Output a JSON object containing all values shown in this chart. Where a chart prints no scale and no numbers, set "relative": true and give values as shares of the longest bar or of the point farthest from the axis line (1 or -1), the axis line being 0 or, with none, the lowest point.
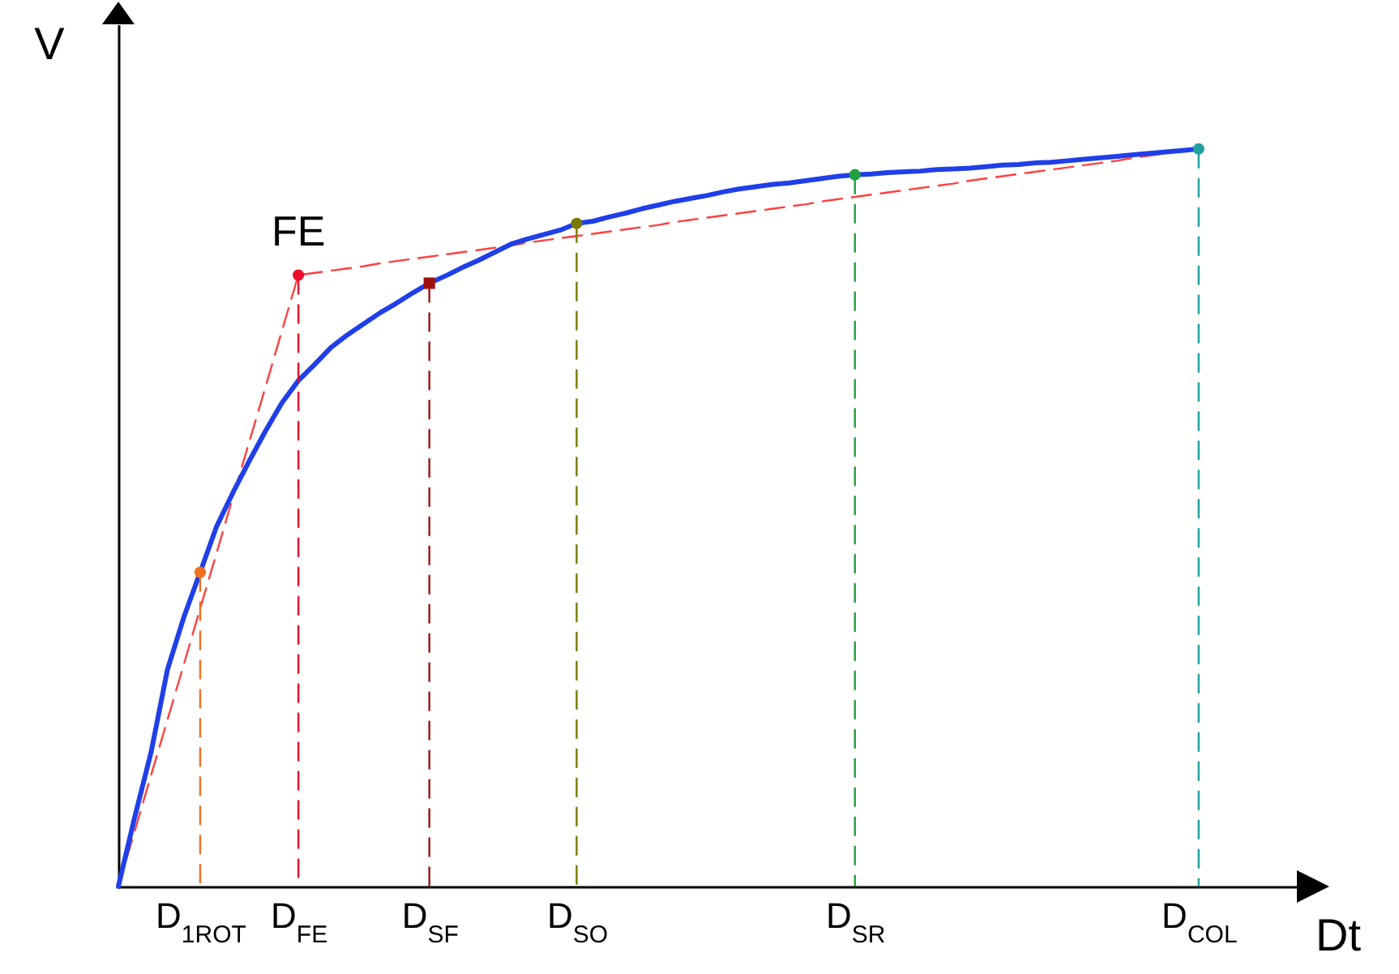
{
  "chart_data": {
    "type": "line",
    "relative": true,
    "xlabel": "Dt",
    "ylabel": "V",
    "categories": [
      null,
      null,
      null,
      null,
      null,
      "D$_{1ROT}$",
      null,
      null,
      null,
      null,
      null,
      "D$_{FE}$",
      null,
      null,
      null,
      null,
      null,
      null,
      null,
      "D$_{SF}$",
      null,
      null,
      null,
      null,
      null,
      null,
      null,
      null,
      "D$_{SO}$",
      null,
      null,
      null,
      null,
      null,
      null,
      null,
      null,
      null,
      null,
      null,
      null,
      null,
      null,
      null,
      null,
      "D$_{SR}$",
      null,
      null,
      null,
      null,
      null,
      null,
      null,
      null,
      null,
      null,
      null,
      null,
      null,
      null,
      null,
      null,
      null,
      null,
      null,
      null,
      "D$_{COL}$",
      null,
      null,
      null,
      null,
      null,
      null
    ],
    "series": [
      {
        "type": "lollipop",
        "marker": "circle",
        "line_style": "dashed",
        "values": [
          null,
          null,
          null,
          null,
          null,
          0.426,
          null,
          null,
          null,
          null,
          null,
          0.829,
          null,
          null,
          null,
          null,
          null,
          null,
          null,
          null,
          null,
          null,
          null,
          null,
          null,
          null,
          null,
          null,
          0.899,
          null,
          null,
          null,
          null,
          null,
          null,
          null,
          null,
          null,
          null,
          null,
          null,
          null,
          null,
          null,
          null,
          0.965,
          null,
          null,
          null,
          null,
          null,
          null,
          null,
          null,
          null,
          null,
          null,
          null,
          null,
          null,
          null,
          null,
          null,
          null,
          null,
          null,
          1,
          null,
          null,
          null,
          null,
          null,
          null
        ],
        "colors": [
          null,
          null,
          null,
          null,
          null,
          "#f07020",
          null,
          null,
          null,
          null,
          null,
          "#e8102a",
          null,
          null,
          null,
          null,
          null,
          null,
          null,
          null,
          null,
          null,
          null,
          null,
          null,
          null,
          null,
          null,
          "#7a7a00",
          null,
          null,
          null,
          null,
          null,
          null,
          null,
          null,
          null,
          null,
          null,
          null,
          null,
          null,
          null,
          null,
          "#20a040",
          null,
          null,
          null,
          null,
          null,
          null,
          null,
          null,
          null,
          null,
          null,
          null,
          null,
          null,
          null,
          null,
          null,
          null,
          null,
          null,
          "#20a0a0",
          null,
          null,
          null,
          null,
          null,
          null
        ]
      },
      {
        "color": "#ff4040",
        "line_style": "dashed",
        "marker": "none",
        "values": [
          0,
          0.075,
          0.151,
          0.226,
          0.301,
          0.377,
          0.452,
          0.528,
          0.603,
          0.678,
          0.754,
          0.829,
          0.832,
          0.835,
          0.838,
          0.841,
          0.845,
          0.848,
          0.851,
          0.854,
          0.857,
          0.86,
          0.863,
          0.866,
          0.869,
          0.873,
          0.876,
          0.879,
          0.882,
          0.885,
          0.888,
          0.891,
          0.894,
          0.897,
          0.901,
          0.904,
          0.907,
          0.91,
          0.913,
          0.916,
          0.919,
          0.922,
          0.925,
          0.929,
          0.932,
          0.935,
          0.938,
          0.941,
          0.944,
          0.947,
          0.95,
          0.953,
          0.957,
          0.96,
          0.963,
          0.966,
          0.969,
          0.972,
          0.975,
          0.978,
          0.981,
          0.984,
          0.988,
          0.991,
          0.994,
          0.997,
          1,
          null,
          null,
          null,
          null,
          null,
          null
        ]
      },
      {
        "color": "#1f3fe8",
        "line_style": "solid",
        "marker": "none",
        "values": [
          0,
          0.094,
          0.182,
          0.294,
          0.365,
          0.426,
          0.488,
          0.534,
          0.577,
          0.618,
          0.656,
          0.686,
          0.708,
          0.731,
          0.748,
          0.763,
          0.778,
          0.791,
          0.805,
          0.818,
          0.828,
          0.839,
          0.849,
          0.86,
          0.871,
          0.878,
          0.884,
          0.89,
          0.899,
          0.902,
          0.908,
          0.913,
          0.919,
          0.924,
          0.929,
          0.933,
          0.937,
          0.942,
          0.946,
          0.949,
          0.952,
          0.954,
          0.957,
          0.96,
          0.963,
          0.965,
          0.966,
          0.968,
          0.969,
          0.97,
          0.972,
          0.973,
          0.974,
          0.976,
          0.978,
          0.979,
          0.981,
          0.982,
          0.984,
          0.986,
          0.988,
          0.99,
          0.992,
          0.994,
          0.996,
          0.998,
          1,
          null,
          null,
          null,
          null,
          null,
          null
        ]
      },
      {
        "type": "lollipop",
        "marker": "square",
        "line_style": "dashed",
        "color": "#a01010",
        "values": [
          null,
          null,
          null,
          null,
          null,
          null,
          null,
          null,
          null,
          null,
          null,
          null,
          null,
          null,
          null,
          null,
          null,
          null,
          null,
          0.818,
          null,
          null,
          null,
          null,
          null,
          null,
          null,
          null,
          null,
          null,
          null,
          null,
          null,
          null,
          null,
          null,
          null,
          null,
          null,
          null,
          null,
          null,
          null,
          null,
          null,
          null,
          null,
          null,
          null,
          null,
          null,
          null,
          null,
          null,
          null,
          null,
          null,
          null,
          null,
          null,
          null,
          null,
          null,
          null,
          null,
          null,
          null,
          null,
          null,
          null,
          null,
          null,
          null
        ]
      }
    ],
    "annotations": [
      {
        "text": "FE",
        "x": "D$_{FE}$",
        "y": 0.829
      }
    ]
  }
}
